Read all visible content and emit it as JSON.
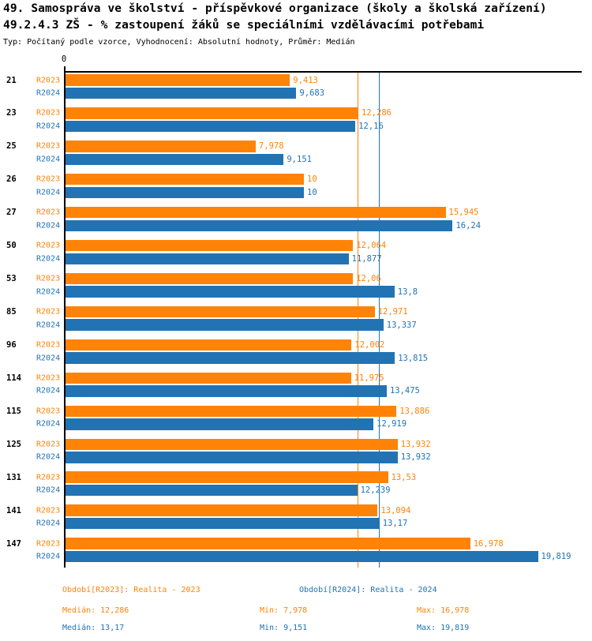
{
  "header": {
    "title_line1": "49. Samospráva ve školství - příspěvkové organizace (školy a školská zařízení)",
    "title_line2": "49.2.4.3 ZŠ - % zastoupení žáků se speciálními vzdělávacími potřebami",
    "subtitle": "Typ: Počítaný podle vzorce, Vyhodnocení: Absolutní hodnoty, Průměr: Medián"
  },
  "colors": {
    "r2023": "#ff8307",
    "r2024": "#2173b4",
    "axis": "#000000",
    "background": "#ffffff"
  },
  "chart_data": {
    "type": "bar",
    "orientation": "horizontal",
    "title": "49.2.4.3 ZŠ - % zastoupení žáků se speciálními vzdělávacími potřebami",
    "xlabel": "",
    "ylabel": "",
    "x_axis": {
      "origin_label": "0",
      "xlim": [
        0,
        21.7
      ],
      "grid": false
    },
    "legend_position": "bottom",
    "categories": [
      "21",
      "23",
      "25",
      "26",
      "27",
      "50",
      "53",
      "85",
      "96",
      "114",
      "115",
      "125",
      "131",
      "141",
      "147"
    ],
    "series": [
      {
        "name": "R2023",
        "color": "#ff8307",
        "values": [
          9.413,
          12.286,
          7.978,
          10,
          15.945,
          12.064,
          12.06,
          12.971,
          12.002,
          11.975,
          13.886,
          13.932,
          13.53,
          13.094,
          16.978
        ],
        "labels": [
          "9,413",
          "12,286",
          "7,978",
          "10",
          "15,945",
          "12,064",
          "12,06",
          "12,971",
          "12,002",
          "11,975",
          "13,886",
          "13,932",
          "13,53",
          "13,094",
          "16,978"
        ]
      },
      {
        "name": "R2024",
        "color": "#2173b4",
        "values": [
          9.683,
          12.16,
          9.151,
          10,
          16.24,
          11.877,
          13.8,
          13.337,
          13.815,
          13.475,
          12.919,
          13.932,
          12.239,
          13.17,
          19.819
        ],
        "labels": [
          "9,683",
          "12,16",
          "9,151",
          "10",
          "16,24",
          "11,877",
          "13,8",
          "13,337",
          "13,815",
          "13,475",
          "12,919",
          "13,932",
          "12,239",
          "13,17",
          "19,819"
        ]
      }
    ],
    "median_lines": [
      {
        "series": "R2023",
        "value": 12.286,
        "color": "#ff8307"
      },
      {
        "series": "R2024",
        "value": 13.17,
        "color": "#2173b4"
      }
    ]
  },
  "legend": {
    "r2023": "Období[R2023]: Realita - 2023",
    "r2024": "Období[R2024]: Realita - 2024"
  },
  "stats": {
    "r2023": {
      "median": "Medián: 12,286",
      "min": "Min: 7,978",
      "max": "Max: 16,978"
    },
    "r2024": {
      "median": "Medián: 13,17",
      "min": "Min: 9,151",
      "max": "Max: 19,819"
    }
  }
}
